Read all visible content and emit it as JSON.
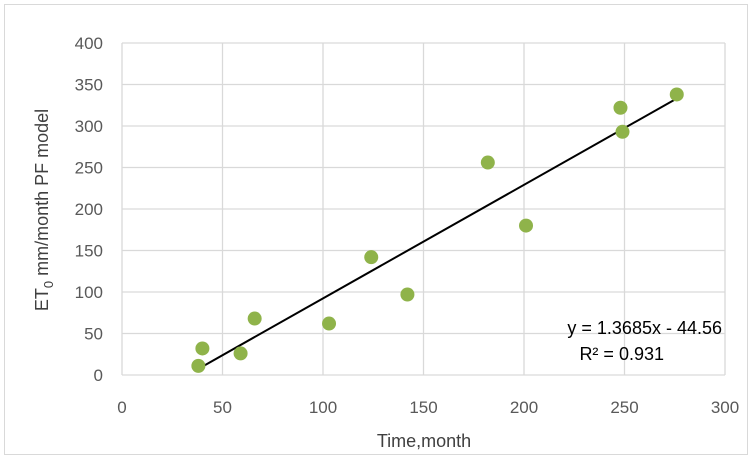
{
  "chart_data": {
    "type": "scatter",
    "xlabel": "Time,month",
    "ylabel_main": "ET",
    "ylabel_sub": "0",
    "ylabel_rest": " mm/month PF model",
    "xlim": [
      0,
      300
    ],
    "ylim": [
      0,
      400
    ],
    "x_ticks": [
      "0",
      "50",
      "100",
      "150",
      "200",
      "250",
      "300"
    ],
    "y_ticks": [
      "0",
      "50",
      "100",
      "150",
      "200",
      "250",
      "300",
      "350",
      "400"
    ],
    "grid": true,
    "series": [
      {
        "points": [
          {
            "x": 38,
            "y": 11
          },
          {
            "x": 40,
            "y": 32
          },
          {
            "x": 59,
            "y": 26
          },
          {
            "x": 66,
            "y": 68
          },
          {
            "x": 103,
            "y": 62
          },
          {
            "x": 124,
            "y": 142
          },
          {
            "x": 142,
            "y": 97
          },
          {
            "x": 182,
            "y": 256
          },
          {
            "x": 201,
            "y": 180
          },
          {
            "x": 248,
            "y": 322
          },
          {
            "x": 249,
            "y": 293
          },
          {
            "x": 276,
            "y": 338
          }
        ]
      }
    ],
    "trendline": {
      "slope": 1.3685,
      "intercept": -44.56,
      "x_start": 38,
      "x_end": 276,
      "equation": "y = 1.3685x - 44.56",
      "r_squared": "R² = 0.931"
    },
    "colors": {
      "marker": "#8fb34a",
      "trendline": "#000000",
      "grid": "#d9d9d9"
    }
  }
}
